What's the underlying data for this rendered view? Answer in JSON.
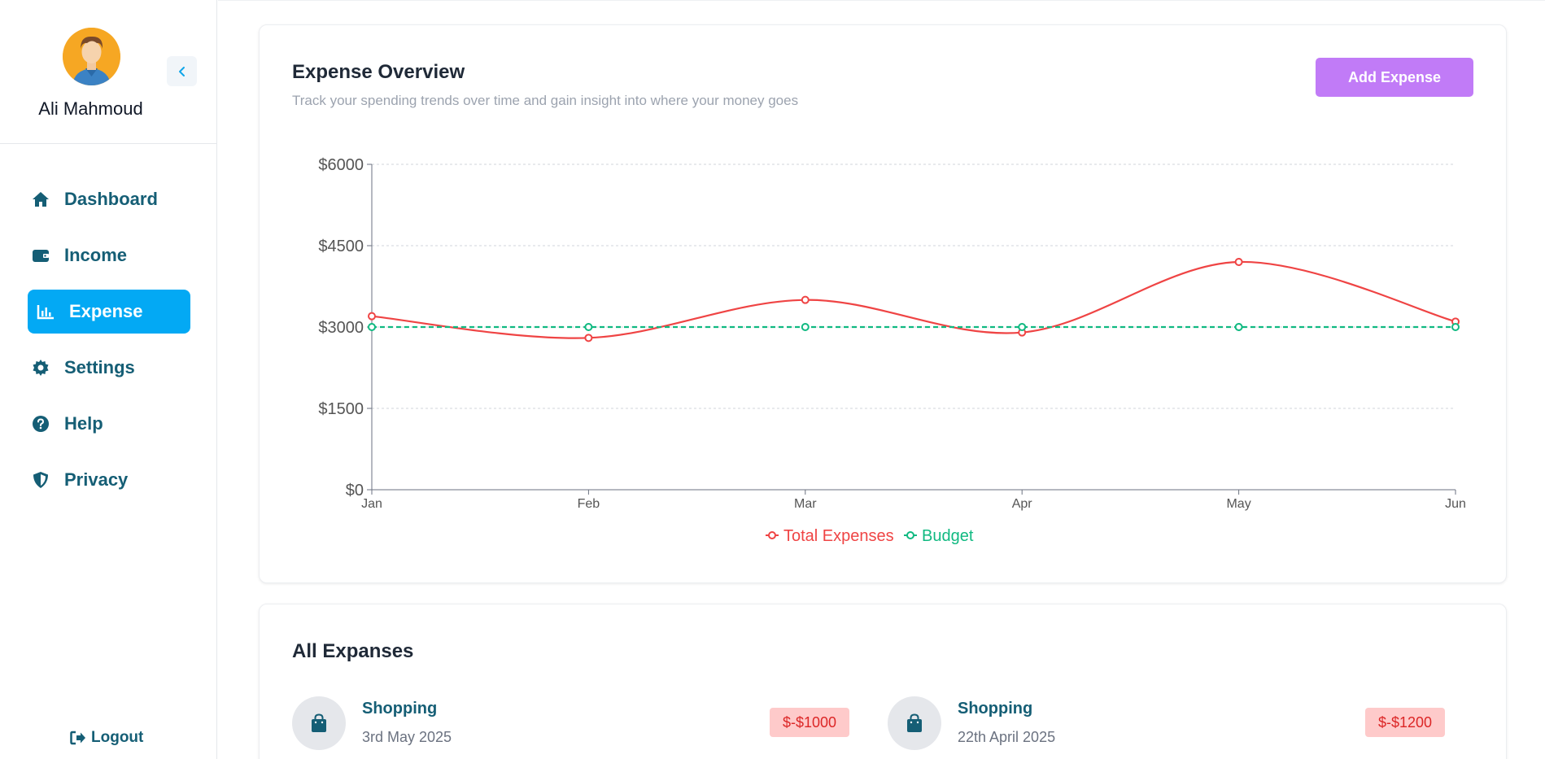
{
  "user": {
    "name": "Ali Mahmoud"
  },
  "sidebar": {
    "items": [
      {
        "label": "Dashboard",
        "icon": "home-icon"
      },
      {
        "label": "Income",
        "icon": "wallet-icon"
      },
      {
        "label": "Expense",
        "icon": "bar-chart-icon",
        "active": true
      },
      {
        "label": "Settings",
        "icon": "gear-icon"
      },
      {
        "label": "Help",
        "icon": "question-circle-icon"
      },
      {
        "label": "Privacy",
        "icon": "shield-icon"
      }
    ],
    "logout_label": "Logout"
  },
  "overview": {
    "title": "Expense Overview",
    "subtitle": "Track your spending trends over time and gain insight into where your money goes",
    "add_button_label": "Add Expense"
  },
  "chart_data": {
    "type": "line",
    "categories": [
      "Jan",
      "Feb",
      "Mar",
      "Apr",
      "May",
      "Jun"
    ],
    "series": [
      {
        "name": "Total Expenses",
        "values": [
          3200,
          2800,
          3500,
          2900,
          4200,
          3100
        ],
        "color": "#ef4444",
        "style": "solid"
      },
      {
        "name": "Budget",
        "values": [
          3000,
          3000,
          3000,
          3000,
          3000,
          3000
        ],
        "color": "#10b981",
        "style": "dashed"
      }
    ],
    "y_ticks": [
      0,
      1500,
      3000,
      4500,
      6000
    ],
    "y_tick_labels": [
      "$0",
      "$1500",
      "$3000",
      "$4500",
      "$6000"
    ],
    "ylim": [
      0,
      6000
    ],
    "grid": true,
    "legend": "bottom-center"
  },
  "expenses": {
    "title": "All Expanses",
    "items": [
      {
        "category": "Shopping",
        "date": "3rd May 2025",
        "amount": "$-$1000",
        "icon": "shopping-bag-icon"
      },
      {
        "category": "Shopping",
        "date": "22th April 2025",
        "amount": "$-$1200",
        "icon": "shopping-bag-icon"
      }
    ]
  },
  "colors": {
    "accent": "#03a9f4",
    "nav_text": "#155e75",
    "add_button": "#c17bf7",
    "expense_line": "#ef4444",
    "budget_line": "#10b981",
    "amount_badge_bg": "#fecaca",
    "amount_badge_text": "#dc2626"
  }
}
